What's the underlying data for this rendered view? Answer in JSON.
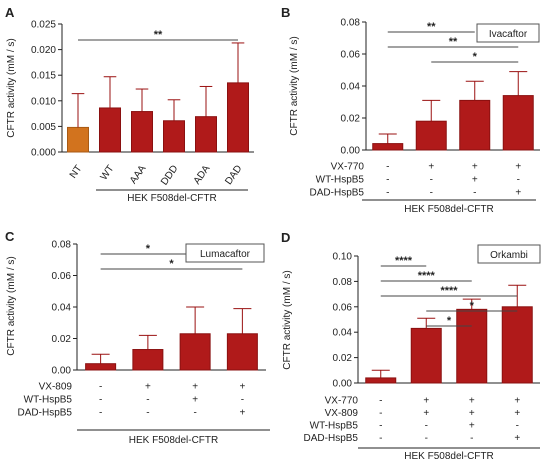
{
  "colors": {
    "bar": "#b01a1a",
    "bar_edge": "#8a1010",
    "nt_bar": "#d2731e",
    "nt_edge": "#a85a14",
    "axis": "#222222"
  },
  "chart_data": [
    {
      "panel": "A",
      "type": "bar",
      "ylabel": "CFTR activity (mM / s)",
      "xlabel": "HEK F508del-CFTR",
      "ylim": [
        0,
        0.025
      ],
      "yticks": [
        "0.000",
        "0.005",
        "0.010",
        "0.015",
        "0.020",
        "0.025"
      ],
      "categories": [
        "NT",
        "WT",
        "AAA",
        "DDD",
        "ADA",
        "DAD"
      ],
      "values": [
        0.0048,
        0.0086,
        0.0079,
        0.0061,
        0.0069,
        0.0135
      ],
      "errors": [
        0.0066,
        0.0061,
        0.0044,
        0.0041,
        0.0059,
        0.0078
      ],
      "significance": [
        {
          "from": 0,
          "to": 5,
          "label": "**"
        }
      ],
      "conditions": []
    },
    {
      "panel": "B",
      "type": "bar",
      "drug": "Ivacaftor",
      "ylabel": "CFTR activity (mM / s)",
      "xlabel": "HEK F508del-CFTR",
      "ylim": [
        0,
        0.08
      ],
      "yticks": [
        "0.00",
        "0.02",
        "0.04",
        "0.06",
        "0.08"
      ],
      "values": [
        0.004,
        0.018,
        0.031,
        0.034
      ],
      "errors": [
        0.006,
        0.013,
        0.012,
        0.015
      ],
      "significance": [
        {
          "from": 0,
          "to": 2,
          "label": "**"
        },
        {
          "from": 0,
          "to": 3,
          "label": "**"
        },
        {
          "from": 1,
          "to": 3,
          "label": "*"
        }
      ],
      "conditions": [
        {
          "label": "VX-770",
          "signs": [
            "-",
            "+",
            "+",
            "+"
          ]
        },
        {
          "label": "WT-HspB5",
          "signs": [
            "-",
            "-",
            "+",
            "-"
          ]
        },
        {
          "label": "DAD-HspB5",
          "signs": [
            "-",
            "-",
            "-",
            "+"
          ]
        }
      ]
    },
    {
      "panel": "C",
      "type": "bar",
      "drug": "Lumacaftor",
      "ylabel": "CFTR activity (mM / s)",
      "xlabel": "HEK F508del-CFTR",
      "ylim": [
        0,
        0.08
      ],
      "yticks": [
        "0.00",
        "0.02",
        "0.04",
        "0.06",
        "0.08"
      ],
      "values": [
        0.004,
        0.013,
        0.023,
        0.023
      ],
      "errors": [
        0.006,
        0.009,
        0.017,
        0.016
      ],
      "significance": [
        {
          "from": 0,
          "to": 2,
          "label": "*"
        },
        {
          "from": 0,
          "to": 3,
          "label": "*"
        }
      ],
      "conditions": [
        {
          "label": "VX-809",
          "signs": [
            "-",
            "+",
            "+",
            "+"
          ]
        },
        {
          "label": "WT-HspB5",
          "signs": [
            "-",
            "-",
            "+",
            "-"
          ]
        },
        {
          "label": "DAD-HspB5",
          "signs": [
            "-",
            "-",
            "-",
            "+"
          ]
        }
      ]
    },
    {
      "panel": "D",
      "type": "bar",
      "drug": "Orkambi",
      "ylabel": "CFTR activity (mM / s)",
      "xlabel": "HEK F508del-CFTR",
      "ylim": [
        0,
        0.1
      ],
      "yticks": [
        "0.00",
        "0.02",
        "0.04",
        "0.06",
        "0.08",
        "0.10"
      ],
      "values": [
        0.004,
        0.043,
        0.058,
        0.06
      ],
      "errors": [
        0.006,
        0.008,
        0.008,
        0.017
      ],
      "significance": [
        {
          "from": 0,
          "to": 1,
          "label": "****"
        },
        {
          "from": 0,
          "to": 2,
          "label": "****"
        },
        {
          "from": 0,
          "to": 3,
          "label": "****"
        },
        {
          "from": 1,
          "to": 3,
          "label": "*"
        },
        {
          "from": 1,
          "to": 2,
          "label": "*"
        }
      ],
      "conditions": [
        {
          "label": "VX-770",
          "signs": [
            "-",
            "+",
            "+",
            "+"
          ]
        },
        {
          "label": "VX-809",
          "signs": [
            "-",
            "+",
            "+",
            "+"
          ]
        },
        {
          "label": "WT-HspB5",
          "signs": [
            "-",
            "-",
            "+",
            "-"
          ]
        },
        {
          "label": "DAD-HspB5",
          "signs": [
            "-",
            "-",
            "-",
            "+"
          ]
        }
      ]
    }
  ]
}
